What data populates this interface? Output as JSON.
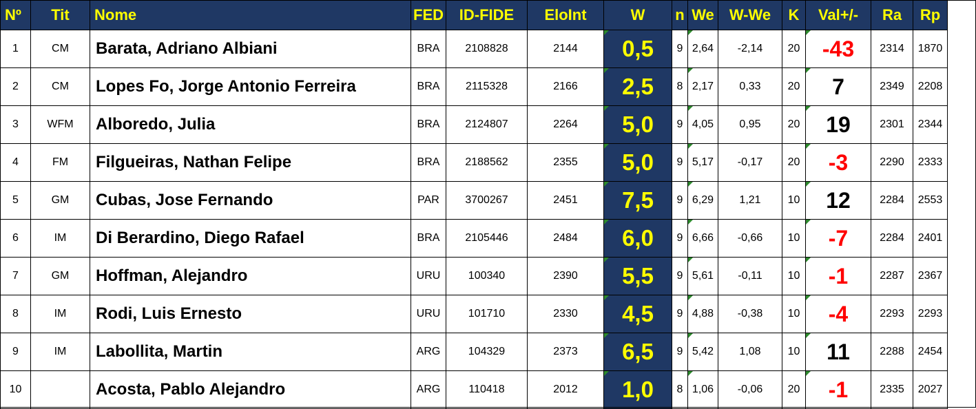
{
  "headers": {
    "no": "Nº",
    "tit": "Tit",
    "nome": "Nome",
    "fed": "FED",
    "idfide": "ID-FIDE",
    "elo": "EloInt",
    "w": "W",
    "n": "n",
    "we": "We",
    "wwe": "W-We",
    "k": "K",
    "val": "Val+/-",
    "ra": "Ra",
    "rp": "Rp"
  },
  "rows": [
    {
      "no": "1",
      "tit": "CM",
      "nome": "Barata, Adriano Albiani",
      "fed": "BRA",
      "idfide": "2108828",
      "elo": "2144",
      "w": "0,5",
      "n": "9",
      "we": "2,64",
      "wwe": "-2,14",
      "k": "20",
      "val": "-43",
      "ra": "2314",
      "rp": "1870"
    },
    {
      "no": "2",
      "tit": "CM",
      "nome": "Lopes Fo, Jorge Antonio Ferreira",
      "fed": "BRA",
      "idfide": "2115328",
      "elo": "2166",
      "w": "2,5",
      "n": "8",
      "we": "2,17",
      "wwe": "0,33",
      "k": "20",
      "val": "7",
      "ra": "2349",
      "rp": "2208"
    },
    {
      "no": "3",
      "tit": "WFM",
      "nome": "Alboredo, Julia",
      "fed": "BRA",
      "idfide": "2124807",
      "elo": "2264",
      "w": "5,0",
      "n": "9",
      "we": "4,05",
      "wwe": "0,95",
      "k": "20",
      "val": "19",
      "ra": "2301",
      "rp": "2344"
    },
    {
      "no": "4",
      "tit": "FM",
      "nome": "Filgueiras, Nathan Felipe",
      "fed": "BRA",
      "idfide": "2188562",
      "elo": "2355",
      "w": "5,0",
      "n": "9",
      "we": "5,17",
      "wwe": "-0,17",
      "k": "20",
      "val": "-3",
      "ra": "2290",
      "rp": "2333"
    },
    {
      "no": "5",
      "tit": "GM",
      "nome": "Cubas, Jose Fernando",
      "fed": "PAR",
      "idfide": "3700267",
      "elo": "2451",
      "w": "7,5",
      "n": "9",
      "we": "6,29",
      "wwe": "1,21",
      "k": "10",
      "val": "12",
      "ra": "2284",
      "rp": "2553"
    },
    {
      "no": "6",
      "tit": "IM",
      "nome": "Di Berardino, Diego Rafael",
      "fed": "BRA",
      "idfide": "2105446",
      "elo": "2484",
      "w": "6,0",
      "n": "9",
      "we": "6,66",
      "wwe": "-0,66",
      "k": "10",
      "val": "-7",
      "ra": "2284",
      "rp": "2401"
    },
    {
      "no": "7",
      "tit": "GM",
      "nome": "Hoffman, Alejandro",
      "fed": "URU",
      "idfide": "100340",
      "elo": "2390",
      "w": "5,5",
      "n": "9",
      "we": "5,61",
      "wwe": "-0,11",
      "k": "10",
      "val": "-1",
      "ra": "2287",
      "rp": "2367"
    },
    {
      "no": "8",
      "tit": "IM",
      "nome": "Rodi, Luis Ernesto",
      "fed": "URU",
      "idfide": "101710",
      "elo": "2330",
      "w": "4,5",
      "n": "9",
      "we": "4,88",
      "wwe": "-0,38",
      "k": "10",
      "val": "-4",
      "ra": "2293",
      "rp": "2293"
    },
    {
      "no": "9",
      "tit": "IM",
      "nome": "Labollita, Martin",
      "fed": "ARG",
      "idfide": "104329",
      "elo": "2373",
      "w": "6,5",
      "n": "9",
      "we": "5,42",
      "wwe": "1,08",
      "k": "10",
      "val": "11",
      "ra": "2288",
      "rp": "2454"
    },
    {
      "no": "10",
      "tit": "",
      "nome": "Acosta, Pablo Alejandro",
      "fed": "ARG",
      "idfide": "110418",
      "elo": "2012",
      "w": "1,0",
      "n": "8",
      "we": "1,06",
      "wwe": "-0,06",
      "k": "20",
      "val": "-1",
      "ra": "2335",
      "rp": "2027"
    }
  ],
  "colors": {
    "header_bg": "#1f3864",
    "header_text": "#ffff00",
    "negative": "#ff0000",
    "positive": "#000000",
    "comment_marker": "#2e8b2e"
  }
}
